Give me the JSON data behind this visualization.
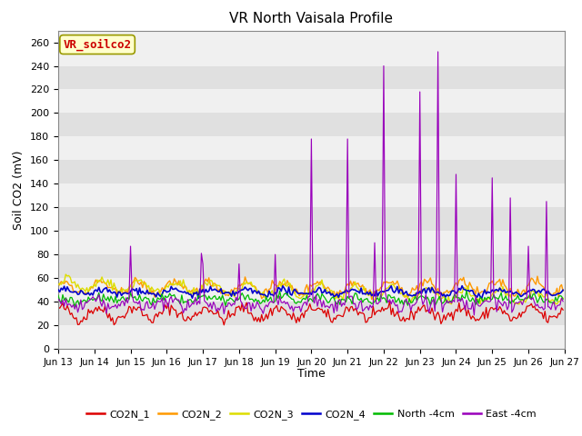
{
  "title": "VR North Vaisala Profile",
  "ylabel": "Soil CO2 (mV)",
  "xlabel": "Time",
  "annotation": "VR_soilco2",
  "ylim": [
    0,
    270
  ],
  "yticks": [
    0,
    20,
    40,
    60,
    80,
    100,
    120,
    140,
    160,
    180,
    200,
    220,
    240,
    260
  ],
  "fig_bg": "#ffffff",
  "plot_bg_light": "#f0f0f0",
  "plot_bg_dark": "#e0e0e0",
  "x_tick_labels": [
    "Jun 13",
    "Jun 14",
    "Jun 15",
    "Jun 16",
    "Jun 17",
    "Jun 18",
    "Jun 19",
    "Jun 20",
    "Jun 21",
    "Jun 22",
    "Jun 23",
    "Jun 24",
    "Jun 25",
    "Jun 26",
    "Jun 27"
  ],
  "series_colors": {
    "CO2N_1": "#dd0000",
    "CO2N_2": "#ff9900",
    "CO2N_3": "#dddd00",
    "CO2N_4": "#0000cc",
    "North_4cm": "#00bb00",
    "East_4cm": "#9900bb"
  },
  "legend_labels": [
    "CO2N_1",
    "CO2N_2",
    "CO2N_3",
    "CO2N_4",
    "North -4cm",
    "East -4cm"
  ],
  "spike_positions": [
    48,
    95,
    96,
    120,
    144,
    168,
    192,
    210,
    216,
    240,
    252,
    264,
    288,
    300,
    312,
    324
  ],
  "spike_heights": [
    87,
    81,
    72,
    72,
    80,
    178,
    178,
    90,
    240,
    218,
    252,
    148,
    145,
    128,
    87,
    125
  ]
}
